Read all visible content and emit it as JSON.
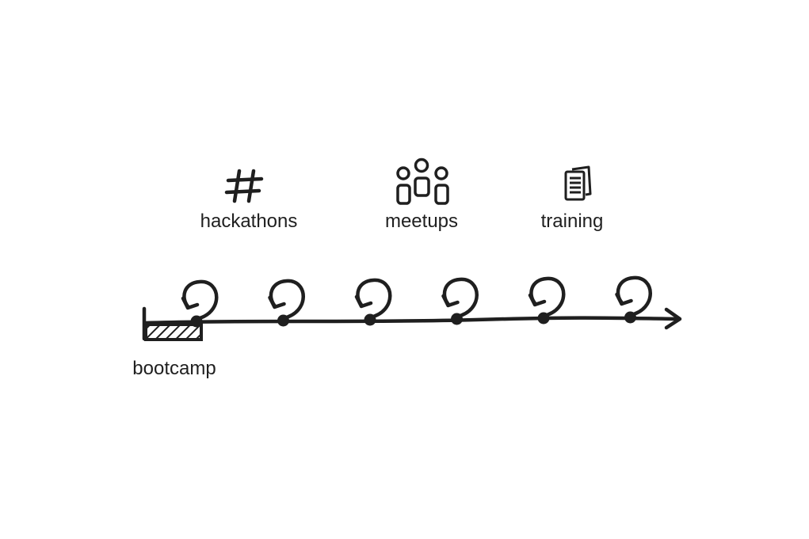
{
  "diagram": {
    "activities": [
      {
        "label": "hackathons",
        "icon": "hash-icon"
      },
      {
        "label": "meetups",
        "icon": "people-icon"
      },
      {
        "label": "training",
        "icon": "documents-icon"
      }
    ],
    "timeline": {
      "start_label": "bootcamp",
      "iteration_count": 6
    },
    "colors": {
      "ink": "#1f1f1f",
      "background": "#ffffff"
    }
  }
}
